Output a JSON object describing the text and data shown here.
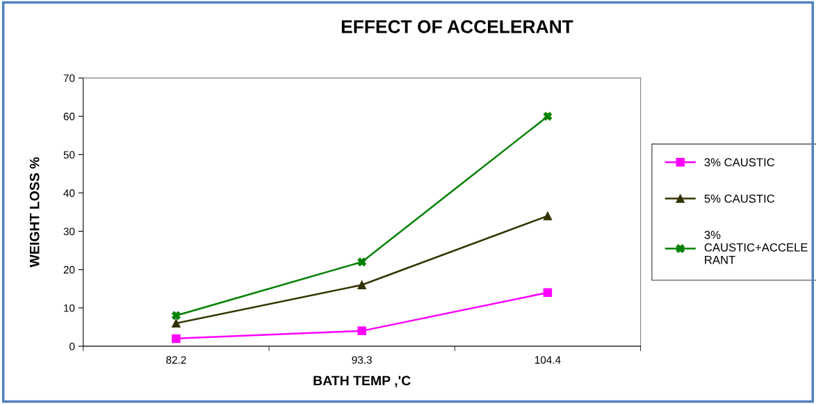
{
  "chart_data": {
    "type": "line",
    "title": "EFFECT OF ACCELERANT",
    "xlabel": "BATH TEMP ,'C",
    "ylabel": "WEIGHT LOSS %",
    "categories": [
      "82.2",
      "93.3",
      "104.4"
    ],
    "series": [
      {
        "name": "3% CAUSTIC",
        "color": "#ff00ff",
        "values": [
          2,
          4,
          14
        ],
        "marker": "square"
      },
      {
        "name": "5% CAUSTIC",
        "color": "#333300",
        "values": [
          6,
          16,
          34
        ],
        "marker": "triangle"
      },
      {
        "name": "3% CAUSTIC+ACCELERANT",
        "color": "#008000",
        "values": [
          8,
          22,
          60
        ],
        "marker": "cross"
      }
    ],
    "ylim": [
      0,
      70
    ],
    "yticks": [
      0,
      10,
      20,
      30,
      40,
      50,
      60,
      70
    ],
    "grid": false,
    "legend": "right",
    "line_style": "solid"
  }
}
